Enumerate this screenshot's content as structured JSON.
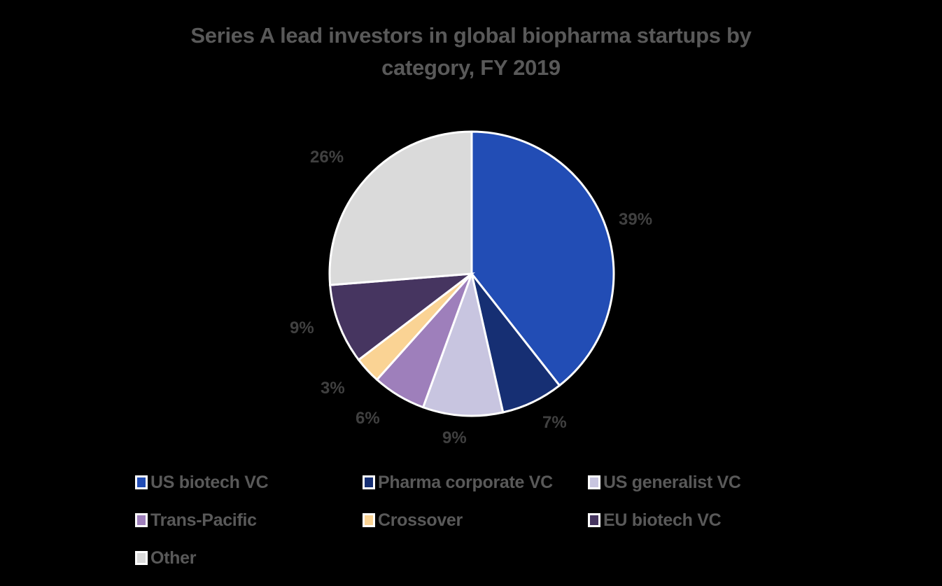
{
  "chart_data": {
    "type": "pie",
    "title": "Series A lead investors in global biopharma startups by category, FY 2019",
    "categories": [
      "US biotech VC",
      "Pharma corporate VC",
      "US generalist VC",
      "Trans-Pacific",
      "Crossover",
      "EU biotech VC",
      "Other"
    ],
    "values": [
      39,
      7,
      9,
      6,
      3,
      9,
      26
    ],
    "labels": [
      "39%",
      "7%",
      "9%",
      "6%",
      "3%",
      "9%",
      "26%"
    ],
    "colors": [
      "#224DB5",
      "#162F73",
      "#C8C5E0",
      "#9E7FBB",
      "#FAD394",
      "#463560",
      "#DADADA"
    ],
    "legend_position": "bottom"
  },
  "title_line1": "Series A lead investors in global biopharma startups by",
  "title_line2": "category, FY 2019"
}
